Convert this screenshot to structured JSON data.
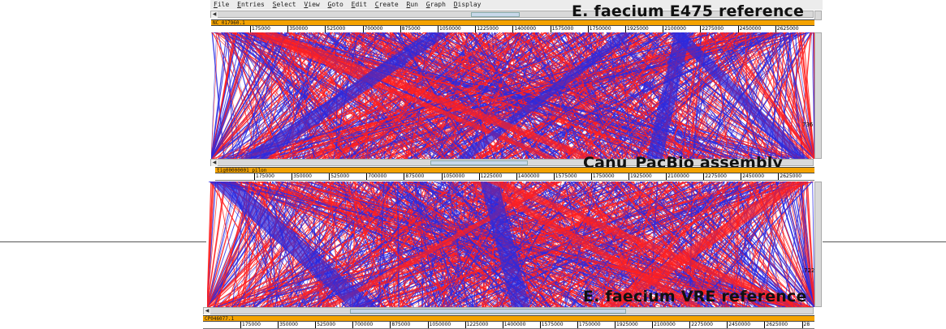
{
  "menu": [
    "File",
    "Entries",
    "Select",
    "View",
    "Goto",
    "Edit",
    "Create",
    "Run",
    "Graph",
    "Display"
  ],
  "overlays": {
    "top": "E. faecium E475 reference",
    "middle": "Canu_PacBio assembly",
    "bottom": "E. faecium VRE reference"
  },
  "sequences": {
    "top": "NC_017960.1",
    "middle": "tig00000001_pilon",
    "bottom": "CP046077.1"
  },
  "ruler_ticks": [
    "175000",
    "350000",
    "525000",
    "700000",
    "875000",
    "1050000",
    "1225000",
    "1400000",
    "1575000",
    "1750000",
    "1925000",
    "2100000",
    "2275000",
    "2450000",
    "2625000"
  ],
  "bottom_ruler_last_partial": "28",
  "side_values": {
    "upper": "736",
    "lower": "722"
  },
  "colors": {
    "forward_match": "#ff2020",
    "reverse_match": "#2a2ae0",
    "seq_bar": "#f4a300"
  }
}
